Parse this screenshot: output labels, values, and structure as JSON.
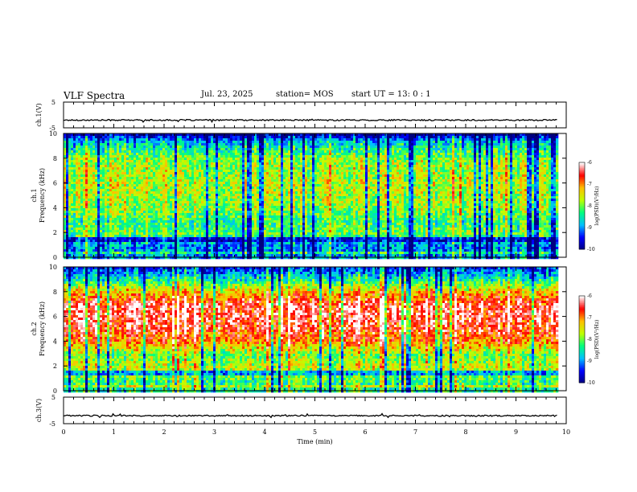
{
  "header": {
    "title": "VLF Spectra",
    "date": "Jul. 23, 2025",
    "station": "station= MOS",
    "start_ut": "start  UT =  13: 0  : 1"
  },
  "chart_data": [
    {
      "type": "line",
      "name": "ch1-waveform",
      "ylabel": "ch.1(V)",
      "ylim": [
        -5,
        5
      ],
      "yticks": [
        "5",
        "-5"
      ],
      "baseline": -2,
      "xlim": [
        0,
        10
      ]
    },
    {
      "type": "heatmap",
      "name": "ch1-spectrogram",
      "ylabel": "ch.1\nFrequency (kHz)",
      "ylim": [
        0,
        10
      ],
      "yticks": [
        "0",
        "2",
        "4",
        "6",
        "8",
        "10"
      ],
      "xlim": [
        0,
        9.83
      ],
      "intensity_profile_khz": [
        [
          0,
          0.3
        ],
        [
          1,
          0.25
        ],
        [
          2,
          0.5
        ],
        [
          3,
          0.45
        ],
        [
          4,
          0.55
        ],
        [
          6,
          0.6
        ],
        [
          8,
          0.55
        ],
        [
          9.5,
          0.3
        ],
        [
          10,
          0.05
        ]
      ],
      "colorbar": {
        "label": "log(PSD)(V²/Hz)",
        "range": [
          -10,
          -6
        ],
        "ticks": [
          "-6",
          "-7",
          "-8",
          "-9",
          "-10"
        ]
      }
    },
    {
      "type": "heatmap",
      "name": "ch2-spectrogram",
      "ylabel": "ch.2\nFrequency (kHz)",
      "ylim": [
        0,
        10
      ],
      "yticks": [
        "0",
        "2",
        "4",
        "6",
        "8",
        "10"
      ],
      "xlim": [
        0,
        9.83
      ],
      "intensity_profile_khz": [
        [
          0,
          0.4
        ],
        [
          1,
          0.45
        ],
        [
          2,
          0.6
        ],
        [
          3,
          0.5
        ],
        [
          4,
          0.75
        ],
        [
          5,
          0.85
        ],
        [
          6,
          0.9
        ],
        [
          7,
          0.9
        ],
        [
          8,
          0.7
        ],
        [
          9,
          0.4
        ],
        [
          10,
          0.15
        ]
      ],
      "colorbar": {
        "label": "log(PSD)(V²/Hz)",
        "range": [
          -10,
          -6
        ],
        "ticks": [
          "-6",
          "-7",
          "-8",
          "-9",
          "-10"
        ]
      }
    },
    {
      "type": "line",
      "name": "ch3-waveform",
      "ylabel": "ch.3(V)",
      "ylim": [
        -5,
        5
      ],
      "yticks": [
        "5",
        "-5"
      ],
      "baseline": -2,
      "xlim": [
        0,
        10
      ],
      "xlabel": "Time  (min)",
      "xticks": [
        "0",
        "1",
        "2",
        "3",
        "4",
        "5",
        "6",
        "7",
        "8",
        "9",
        "10"
      ]
    }
  ],
  "colors": {
    "colormap": [
      "#00007f",
      "#0000ff",
      "#00bfff",
      "#00ff7f",
      "#bfff00",
      "#ffbf00",
      "#ff0000",
      "#ffffff"
    ],
    "background": "#ffffff",
    "axis": "#000000"
  }
}
